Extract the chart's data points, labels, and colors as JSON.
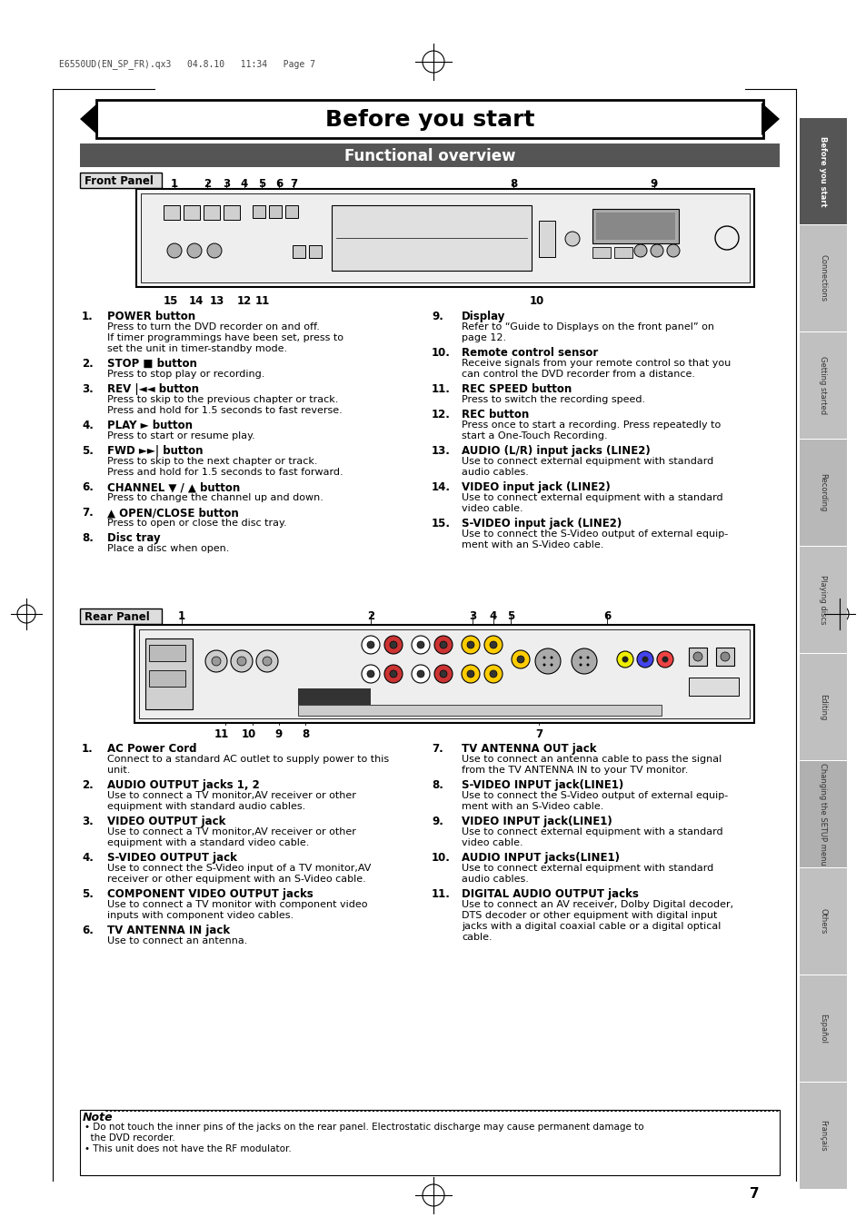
{
  "page_bg": "#ffffff",
  "title_text": "Before you start",
  "subtitle_text": "Functional overview",
  "subtitle_bg": "#555555",
  "subtitle_fg": "#ffffff",
  "header_meta": "E6550UD(EN_SP_FR).qx3   04.8.10   11:34   Page 7",
  "front_panel_label": "Front Panel",
  "rear_panel_label": "Rear Panel",
  "left_column_items": [
    {
      "num": "1.",
      "bold": "POWER button",
      "text": "Press to turn the DVD recorder on and off.\nIf timer programmings have been set, press to\nset the unit in timer-standby mode."
    },
    {
      "num": "2.",
      "bold": "STOP ■ button",
      "text": "Press to stop play or recording."
    },
    {
      "num": "3.",
      "bold": "REV |◄◄ button",
      "text": "Press to skip to the previous chapter or track.\nPress and hold for 1.5 seconds to fast reverse."
    },
    {
      "num": "4.",
      "bold": "PLAY ► button",
      "text": "Press to start or resume play."
    },
    {
      "num": "5.",
      "bold": "FWD ►►| button",
      "text": "Press to skip to the next chapter or track.\nPress and hold for 1.5 seconds to fast forward."
    },
    {
      "num": "6.",
      "bold": "CHANNEL ▼ / ▲ button",
      "text": "Press to change the channel up and down."
    },
    {
      "num": "7.",
      "bold": "▲ OPEN/CLOSE button",
      "text": "Press to open or close the disc tray."
    },
    {
      "num": "8.",
      "bold": "Disc tray",
      "text": "Place a disc when open."
    }
  ],
  "right_column_items": [
    {
      "num": "9.",
      "bold": "Display",
      "text": "Refer to “Guide to Displays on the front panel” on\npage 12."
    },
    {
      "num": "10.",
      "bold": "Remote control sensor",
      "text": "Receive signals from your remote control so that you\ncan control the DVD recorder from a distance."
    },
    {
      "num": "11.",
      "bold": "REC SPEED button",
      "text": "Press to switch the recording speed."
    },
    {
      "num": "12.",
      "bold": "REC button",
      "text": "Press once to start a recording. Press repeatedly to\nstart a One-Touch Recording."
    },
    {
      "num": "13.",
      "bold": "AUDIO (L/R) input jacks (LINE2)",
      "text": "Use to connect external equipment with standard\naudio cables."
    },
    {
      "num": "14.",
      "bold": "VIDEO input jack (LINE2)",
      "text": "Use to connect external equipment with a standard\nvideo cable."
    },
    {
      "num": "15.",
      "bold": "S-VIDEO input jack (LINE2)",
      "text": "Use to connect the S-Video output of external equip-\nment with an S-Video cable."
    }
  ],
  "rear_left_items": [
    {
      "num": "1.",
      "bold": "AC Power Cord",
      "text": "Connect to a standard AC outlet to supply power to this\nunit."
    },
    {
      "num": "2.",
      "bold": "AUDIO OUTPUT jacks 1, 2",
      "text": "Use to connect a TV monitor,AV receiver or other\nequipment with standard audio cables."
    },
    {
      "num": "3.",
      "bold": "VIDEO OUTPUT jack",
      "text": "Use to connect a TV monitor,AV receiver or other\nequipment with a standard video cable."
    },
    {
      "num": "4.",
      "bold": "S-VIDEO OUTPUT jack",
      "text": "Use to connect the S-Video input of a TV monitor,AV\nreceiver or other equipment with an S-Video cable."
    },
    {
      "num": "5.",
      "bold": "COMPONENT VIDEO OUTPUT jacks",
      "text": "Use to connect a TV monitor with component video\ninputs with component video cables."
    },
    {
      "num": "6.",
      "bold": "TV ANTENNA IN jack",
      "text": "Use to connect an antenna."
    }
  ],
  "rear_right_items": [
    {
      "num": "7.",
      "bold": "TV ANTENNA OUT jack",
      "text": "Use to connect an antenna cable to pass the signal\nfrom the TV ANTENNA IN to your TV monitor."
    },
    {
      "num": "8.",
      "bold": "S-VIDEO INPUT jack(LINE1)",
      "text": "Use to connect the S-Video output of external equip-\nment with an S-Video cable."
    },
    {
      "num": "9.",
      "bold": "VIDEO INPUT jack(LINE1)",
      "text": "Use to connect external equipment with a standard\nvideo cable."
    },
    {
      "num": "10.",
      "bold": "AUDIO INPUT jacks(LINE1)",
      "text": "Use to connect external equipment with standard\naudio cables."
    },
    {
      "num": "11.",
      "bold": "DIGITAL AUDIO OUTPUT jacks",
      "text": "Use to connect an AV receiver, Dolby Digital decoder,\nDTS decoder or other equipment with digital input\njacks with a digital coaxial cable or a digital optical\ncable."
    }
  ],
  "note_title": "Note",
  "note_lines": [
    "• Do not touch the inner pins of the jacks on the rear panel. Electrostatic discharge may cause permanent damage to",
    "  the DVD recorder.",
    "• This unit does not have the RF modulator."
  ],
  "side_tabs": [
    "Before you start",
    "Connections",
    "Getting started",
    "Recording",
    "Playing discs",
    "Editing",
    "Changing the SETUP menu",
    "Others",
    "Español",
    "Français"
  ],
  "side_tab_colors": [
    "#555555",
    "#cccccc",
    "#cccccc",
    "#cccccc",
    "#cccccc",
    "#cccccc",
    "#bbbbbb",
    "#cccccc",
    "#cccccc",
    "#cccccc"
  ],
  "page_number": "7"
}
